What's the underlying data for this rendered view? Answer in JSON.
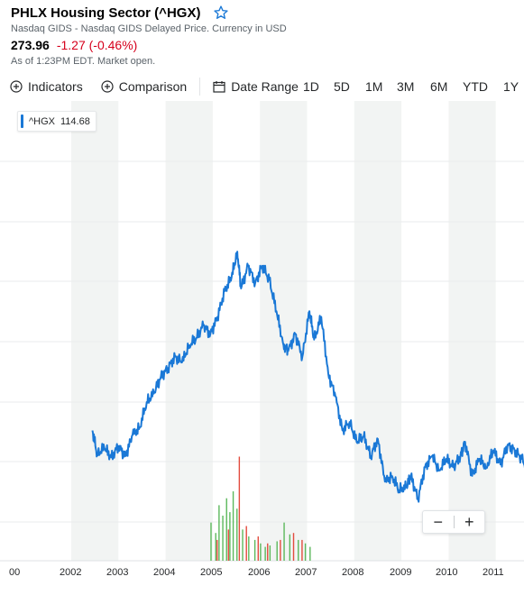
{
  "header": {
    "title": "PHLX Housing Sector (^HGX)",
    "exchange_note": "Nasdaq GIDS - Nasdaq GIDS Delayed Price. Currency in USD",
    "price": "273.96",
    "change": "-1.27 (-0.46%)",
    "as_of": "As of 1:23PM EDT. Market open."
  },
  "toolbar": {
    "indicators_label": "Indicators",
    "comparison_label": "Comparison",
    "date_range_label": "Date Range",
    "ranges": [
      "1D",
      "5D",
      "1M",
      "3M",
      "6M",
      "YTD",
      "1Y"
    ]
  },
  "legend": {
    "symbol": "^HGX",
    "value": "114.68"
  },
  "zoom": {
    "minus": "−",
    "plus": "+"
  },
  "colors": {
    "line": "#1a78d6",
    "up": "#5cb85c",
    "down": "#e34c3f",
    "band": "#f2f4f3",
    "accent": "#1a78d6",
    "negative": "#d6001c"
  },
  "chart_data": {
    "type": "line",
    "series": [
      {
        "name": "^HGX"
      }
    ],
    "x_ticks": [
      "00",
      "2002",
      "2003",
      "2004",
      "2005",
      "2006",
      "2007",
      "2008",
      "2009",
      "2010",
      "2011"
    ],
    "x": [
      2002.45,
      2002.55,
      2002.7,
      2002.85,
      2003.0,
      2003.15,
      2003.3,
      2003.45,
      2003.6,
      2003.75,
      2003.9,
      2004.05,
      2004.2,
      2004.35,
      2004.5,
      2004.65,
      2004.8,
      2004.95,
      2005.1,
      2005.25,
      2005.4,
      2005.52,
      2005.6,
      2005.75,
      2005.9,
      2006.05,
      2006.2,
      2006.35,
      2006.5,
      2006.6,
      2006.75,
      2006.9,
      2007.05,
      2007.15,
      2007.3,
      2007.45,
      2007.6,
      2007.75,
      2007.9,
      2008.05,
      2008.2,
      2008.35,
      2008.5,
      2008.65,
      2008.8,
      2008.95,
      2009.1,
      2009.2,
      2009.35,
      2009.5,
      2009.65,
      2009.8,
      2009.95,
      2010.1,
      2010.25,
      2010.35,
      2010.5,
      2010.65,
      2010.8,
      2010.95,
      2011.1,
      2011.25,
      2011.4,
      2011.55,
      2011.7
    ],
    "y": [
      300,
      215,
      240,
      205,
      245,
      210,
      285,
      310,
      400,
      430,
      490,
      520,
      560,
      540,
      600,
      625,
      670,
      640,
      700,
      790,
      840,
      930,
      800,
      880,
      820,
      880,
      830,
      720,
      600,
      580,
      640,
      560,
      720,
      620,
      700,
      500,
      420,
      300,
      330,
      260,
      280,
      210,
      270,
      120,
      140,
      90,
      100,
      140,
      60,
      170,
      210,
      160,
      200,
      170,
      210,
      260,
      140,
      200,
      170,
      230,
      180,
      250,
      230,
      200,
      150
    ],
    "volume_up": [
      [
        2004.95,
        0.55
      ],
      [
        2005.05,
        0.4
      ],
      [
        2005.12,
        0.8
      ],
      [
        2005.2,
        0.65
      ],
      [
        2005.28,
        0.9
      ],
      [
        2005.35,
        0.7
      ],
      [
        2005.42,
        1.0
      ],
      [
        2005.5,
        0.75
      ],
      [
        2005.62,
        0.45
      ],
      [
        2005.75,
        0.35
      ],
      [
        2005.88,
        0.3
      ],
      [
        2006.0,
        0.25
      ],
      [
        2006.1,
        0.2
      ],
      [
        2006.2,
        0.22
      ],
      [
        2006.35,
        0.28
      ],
      [
        2006.5,
        0.55
      ],
      [
        2006.62,
        0.38
      ],
      [
        2006.8,
        0.3
      ],
      [
        2006.95,
        0.25
      ],
      [
        2007.05,
        0.2
      ]
    ],
    "volume_down": [
      [
        2005.08,
        0.3
      ],
      [
        2005.32,
        0.45
      ],
      [
        2005.55,
        1.5
      ],
      [
        2005.7,
        0.5
      ],
      [
        2005.95,
        0.35
      ],
      [
        2006.15,
        0.25
      ],
      [
        2006.42,
        0.3
      ],
      [
        2006.7,
        0.4
      ],
      [
        2006.88,
        0.3
      ]
    ],
    "xlim": [
      2000.95,
      2011.7
    ],
    "ylim": [
      0,
      1000
    ],
    "grid": true
  }
}
